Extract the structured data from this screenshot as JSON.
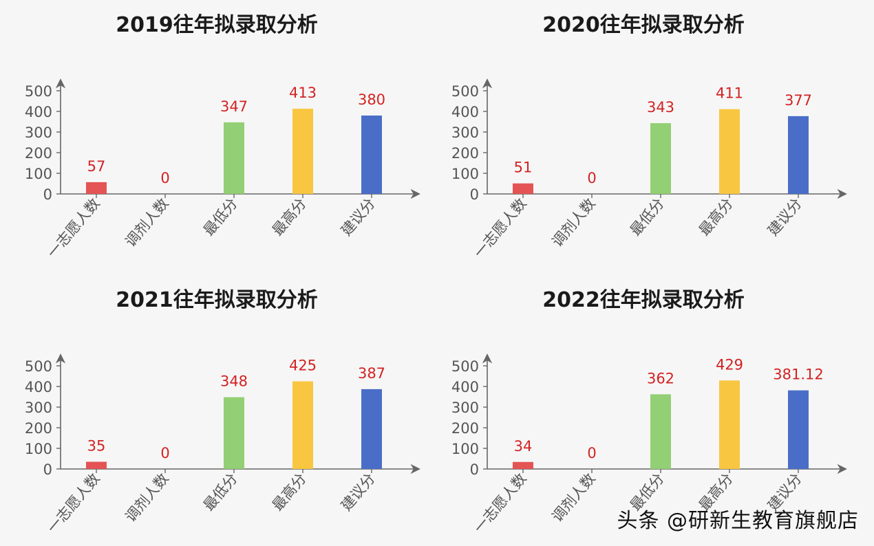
{
  "watermark": "头条 @研新生教育旗舰店",
  "colors": {
    "background": "#f6f6f6",
    "axis": "#666666",
    "tick_text": "#555555",
    "value_label": "#d32222",
    "bars": [
      "#e45454",
      "#e45454",
      "#93cf74",
      "#f9c641",
      "#4a6ec8"
    ]
  },
  "chart_data": [
    {
      "type": "bar",
      "title": "2019往年拟录取分析",
      "categories": [
        "一志愿人数",
        "调剂人数",
        "最低分",
        "最高分",
        "建议分"
      ],
      "values": [
        57,
        0,
        347,
        413,
        380
      ],
      "value_labels": [
        "57",
        "0",
        "347",
        "413",
        "380"
      ],
      "yticks": [
        "0",
        "100",
        "200",
        "300",
        "400",
        "500"
      ],
      "ylim": [
        0,
        500
      ],
      "grid": false,
      "legend": "none"
    },
    {
      "type": "bar",
      "title": "2020往年拟录取分析",
      "categories": [
        "一志愿人数",
        "调剂人数",
        "最低分",
        "最高分",
        "建议分"
      ],
      "values": [
        51,
        0,
        343,
        411,
        377
      ],
      "value_labels": [
        "51",
        "0",
        "343",
        "411",
        "377"
      ],
      "yticks": [
        "0",
        "100",
        "200",
        "300",
        "400",
        "500"
      ],
      "ylim": [
        0,
        500
      ],
      "grid": false,
      "legend": "none"
    },
    {
      "type": "bar",
      "title": "2021往年拟录取分析",
      "categories": [
        "一志愿人数",
        "调剂人数",
        "最低分",
        "最高分",
        "建议分"
      ],
      "values": [
        35,
        0,
        348,
        425,
        387
      ],
      "value_labels": [
        "35",
        "0",
        "348",
        "425",
        "387"
      ],
      "yticks": [
        "0",
        "100",
        "200",
        "300",
        "400",
        "500"
      ],
      "ylim": [
        0,
        500
      ],
      "grid": false,
      "legend": "none"
    },
    {
      "type": "bar",
      "title": "2022往年拟录取分析",
      "categories": [
        "一志愿人数",
        "调剂人数",
        "最低分",
        "最高分",
        "建议分"
      ],
      "values": [
        34,
        0,
        362,
        429,
        381.12
      ],
      "value_labels": [
        "34",
        "0",
        "362",
        "429",
        "381.12"
      ],
      "yticks": [
        "0",
        "100",
        "200",
        "300",
        "400",
        "500"
      ],
      "ylim": [
        0,
        500
      ],
      "grid": false,
      "legend": "none"
    }
  ]
}
